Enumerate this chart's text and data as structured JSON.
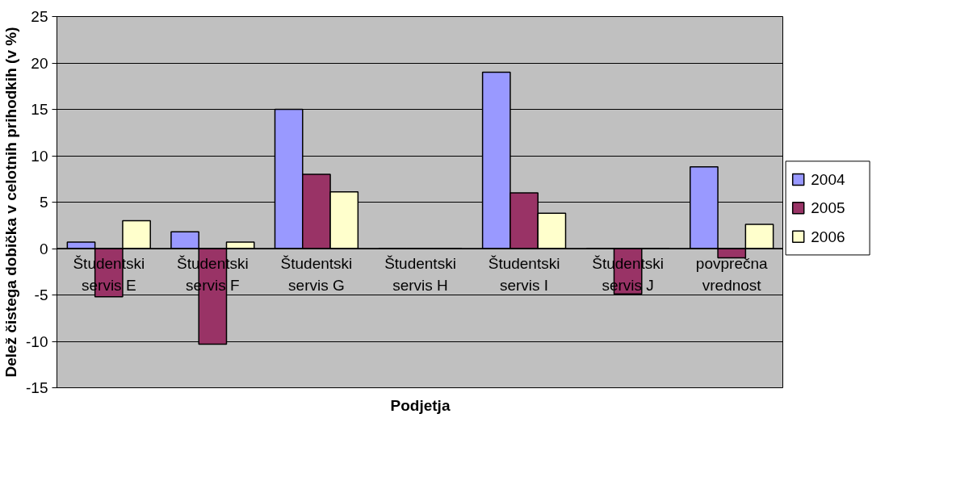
{
  "chart_data": {
    "type": "bar",
    "ylabel": "Delež čistega dobička v celotnih prihodkih (v %)",
    "xlabel": "Podjetja",
    "categories": [
      "Študentski servis E",
      "Študentski servis F",
      "Študentski servis G",
      "Študentski servis H",
      "Študentski servis I",
      "Študentski servis J",
      "povprečna vrednost"
    ],
    "series": [
      {
        "name": "2004",
        "color": "#9999ff",
        "values": [
          0.7,
          1.8,
          15,
          0,
          19,
          0,
          8.8
        ]
      },
      {
        "name": "2005",
        "color": "#993366",
        "values": [
          -5.2,
          -10.3,
          8,
          0,
          6,
          -4.9,
          -1.0
        ]
      },
      {
        "name": "2006",
        "color": "#ffffcc",
        "values": [
          3.0,
          0.7,
          6.1,
          0,
          3.8,
          0,
          2.6
        ]
      }
    ],
    "ylim": [
      -15,
      25
    ],
    "yticks": [
      -15,
      -10,
      -5,
      0,
      5,
      10,
      15,
      20,
      25
    ],
    "grid": "y",
    "legend": "right"
  }
}
